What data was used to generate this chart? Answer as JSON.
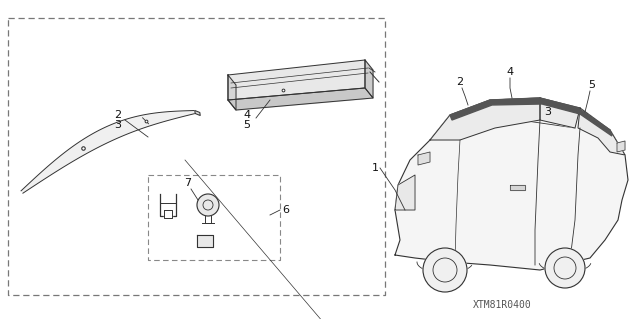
{
  "bg_color": "#ffffff",
  "line_color": "#333333",
  "watermark": "XTM81R0400",
  "font_size": 8
}
